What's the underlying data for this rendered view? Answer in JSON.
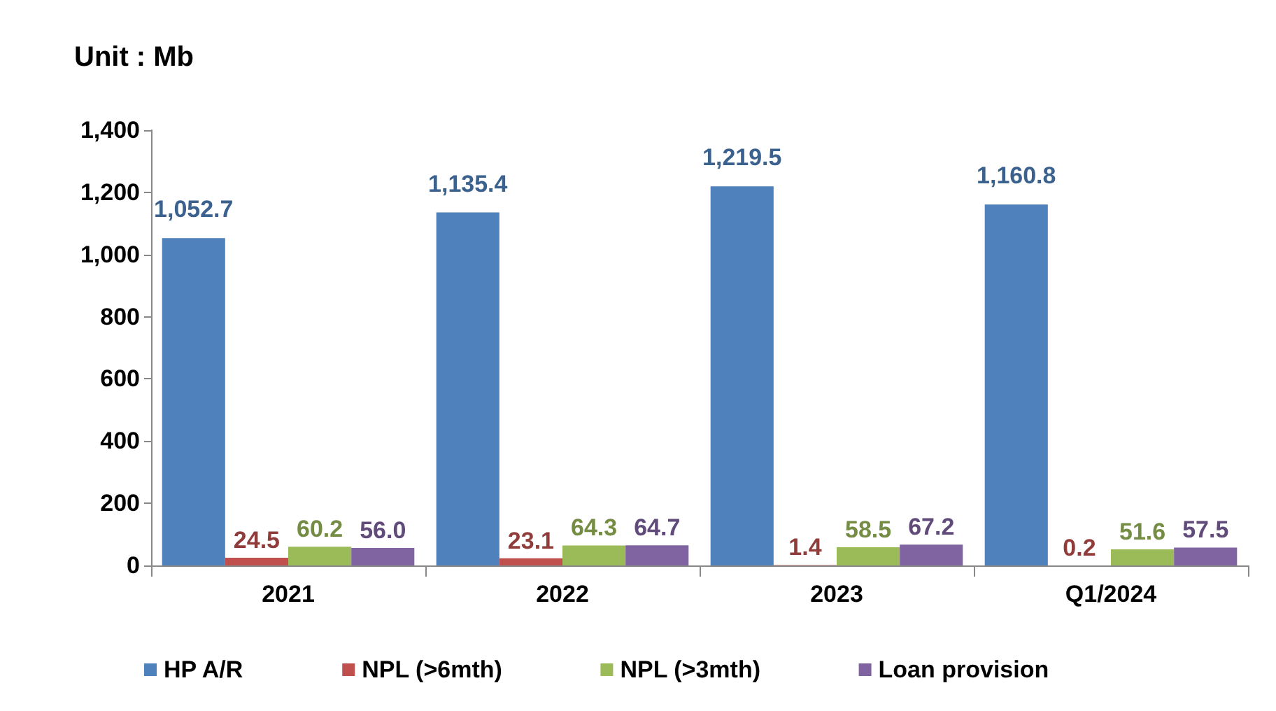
{
  "chart_data": {
    "type": "bar",
    "title": "Unit : Mb",
    "categories": [
      "2021",
      "2022",
      "2023",
      "Q1/2024"
    ],
    "series": [
      {
        "name": "HP A/R",
        "color": "#4f81bd",
        "values": [
          1052.7,
          1135.4,
          1219.5,
          1160.8
        ],
        "value_labels": [
          "1,052.7",
          "1,135.4",
          "1,219.5",
          "1,160.8"
        ]
      },
      {
        "name": "NPL (>6mth)",
        "color": "#c0504d",
        "values": [
          24.5,
          23.1,
          1.4,
          0.2
        ],
        "value_labels": [
          "24.5",
          "23.1",
          "1.4",
          "0.2"
        ]
      },
      {
        "name": "NPL (>3mth)",
        "color": "#9bbb59",
        "values": [
          60.2,
          64.3,
          58.5,
          51.6
        ],
        "value_labels": [
          "60.2",
          "64.3",
          "58.5",
          "51.6"
        ]
      },
      {
        "name": "Loan provision",
        "color": "#8064a2",
        "values": [
          56.0,
          64.7,
          67.2,
          57.5
        ],
        "value_labels": [
          "56.0",
          "64.7",
          "67.2",
          "57.5"
        ]
      }
    ],
    "ylim": [
      0,
      1400
    ],
    "yticks": [
      0,
      200,
      400,
      600,
      800,
      {
        "value": 1000,
        "label": "1,000"
      },
      {
        "value": 1200,
        "label": "1,200"
      },
      {
        "value": 1400,
        "label": "1,400"
      }
    ],
    "grid": false,
    "legend": "bottom"
  }
}
